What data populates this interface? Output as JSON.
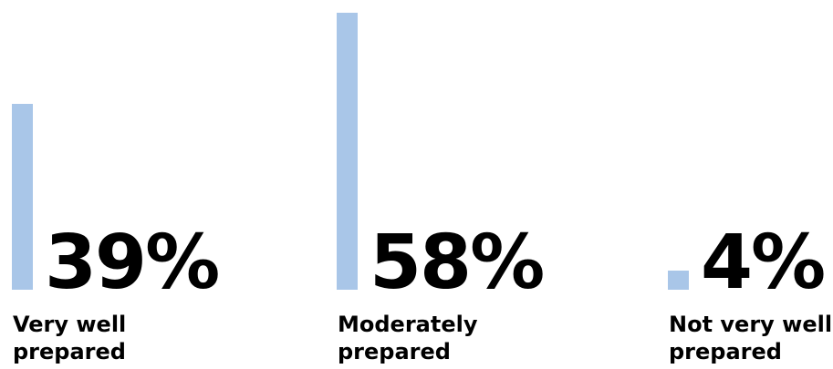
{
  "chart_data": {
    "type": "bar",
    "categories": [
      [
        "Very well",
        "prepared"
      ],
      [
        "Moderately",
        "prepared"
      ],
      [
        "Not very well",
        "prepared"
      ]
    ],
    "values": [
      39,
      58,
      4
    ],
    "value_labels": [
      "39%",
      "58%",
      "4%"
    ],
    "ylim": [
      0,
      58
    ],
    "grid": false,
    "bar_color": "#a9c6e8",
    "text_color": "#000000"
  }
}
